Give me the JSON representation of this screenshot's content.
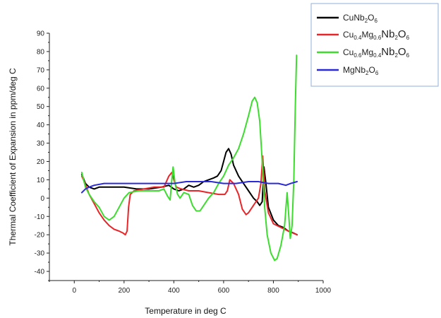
{
  "chart_data": {
    "type": "line",
    "xlabel": "Temperature in deg C",
    "ylabel": "Thermal Coefficient of Expansion in ppm/deg C",
    "xlim": [
      -100,
      1000
    ],
    "ylim": [
      -45,
      90
    ],
    "xticks": [
      "0",
      "200",
      "400",
      "600",
      "800",
      "1000"
    ],
    "yticks": [
      "-40",
      "-30",
      "-20",
      "-10",
      "0",
      "10",
      "20",
      "30",
      "40",
      "50",
      "60",
      "70",
      "80",
      "90"
    ],
    "grid": false,
    "legend_position": "top-right",
    "series": [
      {
        "name": "CuNb2O6",
        "color": "#000000",
        "legend_parts": [
          {
            "text": "CuNb",
            "style": ""
          },
          {
            "text": "2",
            "style": "sub"
          },
          {
            "text": "O",
            "style": ""
          },
          {
            "text": "6",
            "style": "sub"
          }
        ],
        "points": [
          [
            30,
            13
          ],
          [
            45,
            8
          ],
          [
            60,
            6
          ],
          [
            80,
            5
          ],
          [
            100,
            6
          ],
          [
            150,
            6
          ],
          [
            200,
            6
          ],
          [
            250,
            5
          ],
          [
            300,
            5
          ],
          [
            350,
            6
          ],
          [
            380,
            7
          ],
          [
            400,
            5
          ],
          [
            420,
            4
          ],
          [
            440,
            5
          ],
          [
            460,
            7
          ],
          [
            480,
            6
          ],
          [
            500,
            7
          ],
          [
            520,
            9
          ],
          [
            540,
            10
          ],
          [
            560,
            11
          ],
          [
            575,
            12
          ],
          [
            590,
            15
          ],
          [
            600,
            20
          ],
          [
            610,
            25
          ],
          [
            620,
            27
          ],
          [
            630,
            24
          ],
          [
            640,
            18
          ],
          [
            660,
            12
          ],
          [
            680,
            8
          ],
          [
            700,
            4
          ],
          [
            720,
            0
          ],
          [
            735,
            -2
          ],
          [
            745,
            -4
          ],
          [
            755,
            -2
          ],
          [
            762,
            17
          ],
          [
            770,
            8
          ],
          [
            780,
            -5
          ],
          [
            800,
            -12
          ],
          [
            820,
            -15
          ],
          [
            840,
            -16
          ],
          [
            860,
            -18
          ],
          [
            880,
            -19
          ],
          [
            895,
            -20
          ]
        ]
      },
      {
        "name": "Cu0.4Mg0.6Nb2O6",
        "color": "#e8262a",
        "legend_parts": [
          {
            "text": "Cu",
            "style": ""
          },
          {
            "text": "0.4",
            "style": "sub"
          },
          {
            "text": "Mg",
            "style": ""
          },
          {
            "text": "0.6",
            "style": "sub"
          },
          {
            "text": "Nb",
            "style": "big"
          },
          {
            "text": "2",
            "style": "sub"
          },
          {
            "text": "O",
            "style": "big"
          },
          {
            "text": "6",
            "style": "sub"
          }
        ],
        "points": [
          [
            30,
            12
          ],
          [
            40,
            9
          ],
          [
            60,
            2
          ],
          [
            80,
            -3
          ],
          [
            100,
            -8
          ],
          [
            120,
            -12
          ],
          [
            140,
            -15
          ],
          [
            160,
            -17
          ],
          [
            180,
            -18
          ],
          [
            195,
            -19
          ],
          [
            205,
            -20
          ],
          [
            212,
            -18
          ],
          [
            218,
            -5
          ],
          [
            225,
            2
          ],
          [
            240,
            4
          ],
          [
            280,
            5
          ],
          [
            320,
            6
          ],
          [
            360,
            6
          ],
          [
            380,
            12
          ],
          [
            392,
            14
          ],
          [
            400,
            10
          ],
          [
            410,
            6
          ],
          [
            430,
            5
          ],
          [
            460,
            4
          ],
          [
            500,
            4
          ],
          [
            540,
            3
          ],
          [
            580,
            2
          ],
          [
            605,
            2
          ],
          [
            615,
            4
          ],
          [
            625,
            10
          ],
          [
            640,
            8
          ],
          [
            660,
            2
          ],
          [
            675,
            -6
          ],
          [
            690,
            -9
          ],
          [
            700,
            -8
          ],
          [
            720,
            -4
          ],
          [
            740,
            0
          ],
          [
            750,
            8
          ],
          [
            757,
            23
          ],
          [
            765,
            4
          ],
          [
            780,
            -8
          ],
          [
            800,
            -14
          ],
          [
            830,
            -16
          ],
          [
            860,
            -18
          ],
          [
            895,
            -20
          ]
        ]
      },
      {
        "name": "Cu0.6Mg0.4Nb2O6",
        "color": "#3ddc2f",
        "legend_parts": [
          {
            "text": "Cu",
            "style": ""
          },
          {
            "text": "0.6",
            "style": "sub"
          },
          {
            "text": "Mg",
            "style": ""
          },
          {
            "text": "0.4",
            "style": "sub"
          },
          {
            "text": "Nb",
            "style": "big"
          },
          {
            "text": "2",
            "style": "sub"
          },
          {
            "text": "O",
            "style": "big"
          },
          {
            "text": "6",
            "style": "sub"
          }
        ],
        "points": [
          [
            30,
            14
          ],
          [
            45,
            6
          ],
          [
            60,
            2
          ],
          [
            80,
            -2
          ],
          [
            100,
            -5
          ],
          [
            120,
            -10
          ],
          [
            140,
            -12
          ],
          [
            160,
            -10
          ],
          [
            180,
            -5
          ],
          [
            200,
            0
          ],
          [
            220,
            3
          ],
          [
            260,
            4
          ],
          [
            300,
            4
          ],
          [
            340,
            4
          ],
          [
            360,
            5
          ],
          [
            375,
            1
          ],
          [
            385,
            -1
          ],
          [
            392,
            10
          ],
          [
            397,
            17
          ],
          [
            405,
            8
          ],
          [
            415,
            2
          ],
          [
            425,
            0
          ],
          [
            440,
            3
          ],
          [
            460,
            2
          ],
          [
            475,
            -4
          ],
          [
            490,
            -7
          ],
          [
            505,
            -7
          ],
          [
            520,
            -4
          ],
          [
            540,
            0
          ],
          [
            560,
            3
          ],
          [
            580,
            8
          ],
          [
            600,
            12
          ],
          [
            620,
            18
          ],
          [
            640,
            22
          ],
          [
            660,
            27
          ],
          [
            680,
            35
          ],
          [
            700,
            45
          ],
          [
            715,
            53
          ],
          [
            725,
            55
          ],
          [
            735,
            52
          ],
          [
            745,
            42
          ],
          [
            755,
            20
          ],
          [
            765,
            -5
          ],
          [
            775,
            -20
          ],
          [
            790,
            -30
          ],
          [
            805,
            -34
          ],
          [
            815,
            -33
          ],
          [
            830,
            -26
          ],
          [
            845,
            -15
          ],
          [
            855,
            3
          ],
          [
            862,
            -10
          ],
          [
            868,
            -22
          ],
          [
            875,
            -15
          ],
          [
            882,
            10
          ],
          [
            888,
            50
          ],
          [
            893,
            78
          ]
        ]
      },
      {
        "name": "MgNb2O6",
        "color": "#2a2ad9",
        "legend_parts": [
          {
            "text": "MgNb",
            "style": ""
          },
          {
            "text": "2",
            "style": "sub"
          },
          {
            "text": "O",
            "style": ""
          },
          {
            "text": "6",
            "style": "sub"
          }
        ],
        "points": [
          [
            30,
            3
          ],
          [
            45,
            5
          ],
          [
            60,
            6
          ],
          [
            80,
            7
          ],
          [
            120,
            8
          ],
          [
            200,
            8
          ],
          [
            300,
            8
          ],
          [
            400,
            8
          ],
          [
            450,
            9
          ],
          [
            500,
            9
          ],
          [
            550,
            9
          ],
          [
            600,
            8
          ],
          [
            650,
            8
          ],
          [
            700,
            9
          ],
          [
            740,
            9
          ],
          [
            780,
            8
          ],
          [
            820,
            8
          ],
          [
            850,
            7
          ],
          [
            870,
            8
          ],
          [
            895,
            9
          ]
        ]
      }
    ]
  }
}
